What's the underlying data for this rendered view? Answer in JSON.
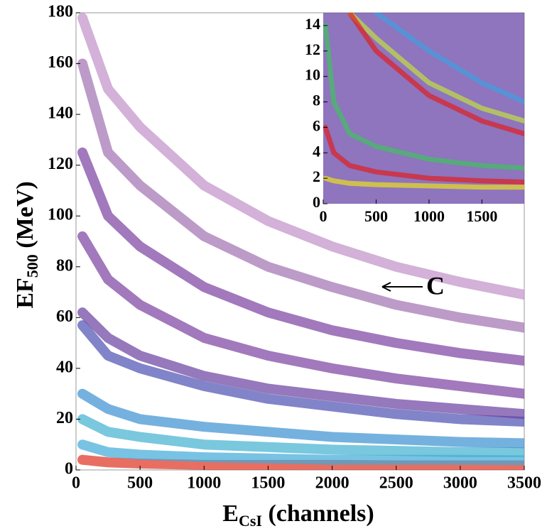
{
  "chart_data": [
    {
      "type": "line",
      "x": [
        50,
        250,
        500,
        1000,
        1500,
        2000,
        2500,
        3000,
        3500
      ],
      "series": [
        {
          "color": "#e03020",
          "values": [
            4,
            3,
            2.5,
            2,
            2,
            2,
            1.8,
            1.8,
            1.8
          ]
        },
        {
          "color": "#3fa9d8",
          "values": [
            10,
            7,
            6,
            5,
            4.5,
            4,
            4,
            4,
            3.8
          ]
        },
        {
          "color": "#40b0d0",
          "values": [
            20,
            15,
            13,
            10,
            9,
            8,
            7.5,
            7,
            7
          ]
        },
        {
          "color": "#3a90d0",
          "values": [
            30,
            24,
            20,
            17,
            15,
            13,
            12,
            11,
            10.5
          ]
        },
        {
          "color": "#4c50b0",
          "values": [
            57,
            45,
            40,
            33,
            28,
            25,
            22,
            20,
            19
          ]
        },
        {
          "color": "#6a3fa0",
          "values": [
            62,
            52,
            45,
            37,
            32,
            29,
            26,
            24,
            22
          ]
        },
        {
          "color": "#7a40a0",
          "values": [
            92,
            75,
            65,
            52,
            45,
            40,
            36,
            33,
            30
          ]
        },
        {
          "color": "#7a40a0",
          "values": [
            125,
            100,
            88,
            72,
            62,
            55,
            50,
            46,
            43
          ]
        },
        {
          "color": "#a070b0",
          "values": [
            160,
            125,
            112,
            92,
            80,
            72,
            65,
            60,
            56
          ]
        },
        {
          "color": "#c090c8",
          "values": [
            178,
            150,
            135,
            112,
            98,
            88,
            80,
            74,
            69
          ]
        }
      ],
      "xlim": [
        0,
        3500
      ],
      "xticks": [
        0,
        500,
        1000,
        1500,
        2000,
        2500,
        3000,
        3500
      ],
      "ylim": [
        0,
        180
      ],
      "yticks": [
        0,
        20,
        40,
        60,
        80,
        100,
        120,
        140,
        160,
        180
      ],
      "xlabel": {
        "main": "E",
        "sub": "CsI",
        "rest": " (channels)"
      },
      "ylabel": {
        "main": "EF",
        "sub": "500",
        "rest": " (MeV)"
      },
      "annotation": "C"
    },
    {
      "type": "line",
      "x": [
        20,
        100,
        250,
        500,
        1000,
        1500,
        1900
      ],
      "series": [
        {
          "color": "#e8e020",
          "values": [
            2,
            1.8,
            1.6,
            1.5,
            1.4,
            1.3,
            1.3
          ]
        },
        {
          "color": "#e02020",
          "values": [
            6,
            4,
            3,
            2.5,
            2,
            1.8,
            1.7
          ]
        },
        {
          "color": "#40c060",
          "values": [
            14,
            8,
            5.5,
            4.5,
            3.5,
            3,
            2.8
          ]
        },
        {
          "color": "#c0e040",
          "values": [
            null,
            null,
            15,
            13,
            9.5,
            7.5,
            6.5
          ]
        },
        {
          "color": "#e02020",
          "values": [
            null,
            null,
            15,
            12,
            8.5,
            6.5,
            5.5
          ]
        },
        {
          "color": "#40a0e0",
          "values": [
            null,
            null,
            null,
            15,
            12,
            9.5,
            8
          ]
        }
      ],
      "xlim": [
        0,
        1900
      ],
      "xticks": [
        0,
        500,
        1000,
        1500
      ],
      "ylim": [
        0,
        15
      ],
      "yticks": [
        0,
        2,
        4,
        6,
        8,
        10,
        12,
        14
      ]
    }
  ]
}
